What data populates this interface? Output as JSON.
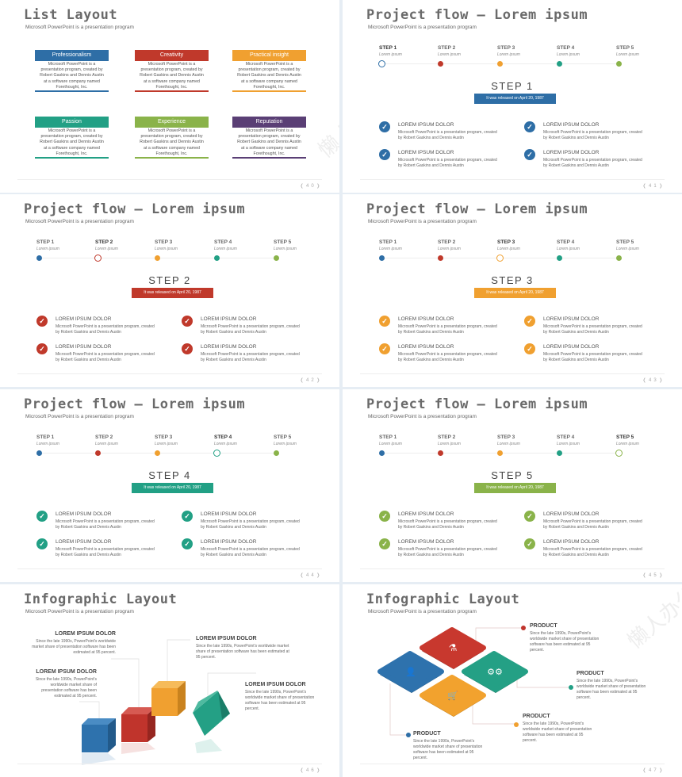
{
  "subtitle": "Microsoft PowerPoint is a presentation program",
  "watermark": "懒人办公",
  "colors": {
    "blue": "#2e6ea6",
    "red": "#c0392b",
    "orange": "#f0a030",
    "teal": "#22a085",
    "green": "#8ab34a",
    "purple": "#5a3f75"
  },
  "list_slide": {
    "title": "List Layout",
    "page": "40",
    "boxes": [
      {
        "label": "Professionalism",
        "color": "#2e6ea6",
        "text": "Microsoft PowerPoint is a presentation program, created by Robert Gaskins and Dennis Austin at a software company named Forethought, Inc."
      },
      {
        "label": "Creativity",
        "color": "#c0392b",
        "text": "Microsoft PowerPoint is a presentation program, created by Robert Gaskins and Dennis Austin at a software company named Forethought, Inc."
      },
      {
        "label": "Practical insight",
        "color": "#f0a030",
        "text": "Microsoft PowerPoint is a presentation program, created by Robert Gaskins and Dennis Austin at a software company named Forethought, Inc."
      },
      {
        "label": "Passion",
        "color": "#22a085",
        "text": "Microsoft PowerPoint is a presentation program, created by Robert Gaskins and Dennis Austin at a software company named Forethought, Inc."
      },
      {
        "label": "Experience",
        "color": "#8ab34a",
        "text": "Microsoft PowerPoint is a presentation program, created by Robert Gaskins and Dennis Austin at a software company named Forethought, Inc."
      },
      {
        "label": "Reputation",
        "color": "#5a3f75",
        "text": "Microsoft PowerPoint is a presentation program, created by Robert Gaskins and Dennis Austin at a software company named Forethought, Inc."
      }
    ]
  },
  "flow": {
    "title": "Project flow – Lorem ipsum",
    "steps": [
      {
        "label": "STEP 1",
        "sub": "Lorem ipsum",
        "color": "#2e6ea6"
      },
      {
        "label": "STEP 2",
        "sub": "Lorem ipsum",
        "color": "#c0392b"
      },
      {
        "label": "STEP 3",
        "sub": "Lorem ipsum",
        "color": "#f0a030"
      },
      {
        "label": "STEP 4",
        "sub": "Lorem ipsum",
        "color": "#22a085"
      },
      {
        "label": "STEP 5",
        "sub": "Lorem ipsum",
        "color": "#8ab34a"
      }
    ],
    "badge": "It was released on April 20, 1987",
    "item_heading": "LOREM IPSUM DOLOR",
    "item_body": "Microsoft PowerPoint is a presentation program, created by Robert Gaskins and Dennis Austin",
    "check_icon": "✓",
    "slides": [
      {
        "active": 0,
        "heading": "STEP 1",
        "page": "41"
      },
      {
        "active": 1,
        "heading": "STEP 2",
        "page": "42"
      },
      {
        "active": 2,
        "heading": "STEP 3",
        "page": "43"
      },
      {
        "active": 3,
        "heading": "STEP 4",
        "page": "44"
      },
      {
        "active": 4,
        "heading": "STEP 5",
        "page": "45"
      }
    ]
  },
  "cubes_slide": {
    "title": "Infographic Layout",
    "page": "46",
    "blocks": [
      {
        "heading": "LOREM IPSUM DOLOR",
        "text": "Since the late 1990s, PowerPoint's worldwide market share of presentation software has been estimated at 95 percent."
      },
      {
        "heading": "LOREM IPSUM DOLOR",
        "text": "Since the late 1990s, PowerPoint's worldwide market share of presentation software has been estimated at 95 percent."
      },
      {
        "heading": "LOREM IPSUM DOLOR",
        "text": "Since the late 1990s, PowerPoint's worldwide market share of presentation software has been estimated at 95 percent."
      },
      {
        "heading": "LOREM IPSUM DOLOR",
        "text": "Since the late 1990s, PowerPoint's worldwide market share of presentation software has been estimated at 95 percent."
      }
    ]
  },
  "tiles_slide": {
    "title": "Infographic Layout",
    "page": "47",
    "blocks": [
      {
        "heading": "PRODUCT",
        "text": "Since the late 1990s, PowerPoint's worldwide market share of presentation software has been estimated at 95 percent.",
        "icon": "flask-icon"
      },
      {
        "heading": "PRODUCT",
        "text": "Since the late 1990s, PowerPoint's worldwide market share of presentation software has been estimated at 95 percent.",
        "icon": "gears-icon"
      },
      {
        "heading": "PRODUCT",
        "text": "Since the late 1990s, PowerPoint's worldwide market share of presentation software has been estimated at 95 percent.",
        "icon": "cart-icon"
      },
      {
        "heading": "PRODUCT",
        "text": "Since the late 1990s, PowerPoint's worldwide market share of presentation software has been estimated at 95 percent.",
        "icon": "user-icon"
      }
    ]
  },
  "nav": {
    "prev": "❬",
    "next": "❭"
  }
}
